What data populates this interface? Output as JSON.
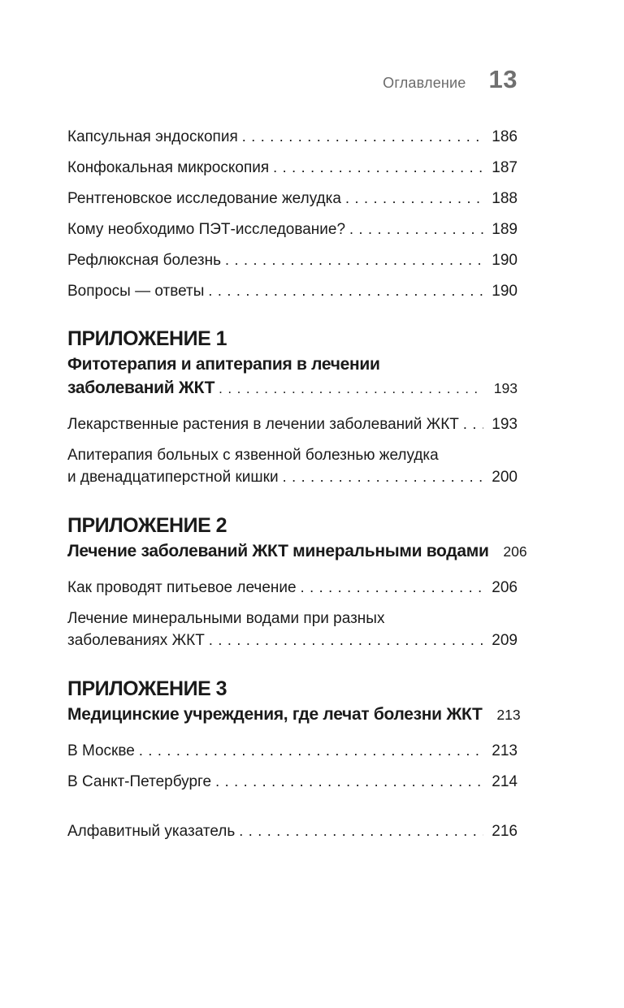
{
  "page": {
    "header": {
      "running_title": "Оглавление",
      "page_number": "13"
    },
    "colors": {
      "text": "#1a1a1a",
      "header_gray": "#6b6b6b",
      "pagenum_gray": "#707070",
      "paper": "#ffffff"
    }
  },
  "toc": {
    "groups": [
      {
        "type": "entries",
        "entries": [
          {
            "label": "Капсульная эндоскопия",
            "page": "186"
          },
          {
            "label": "Конфокальная микроскопия",
            "page": "187"
          },
          {
            "label": "Рентгеновское исследование желудка",
            "page": "188"
          },
          {
            "label": "Кому необходимо ПЭТ-исследование?",
            "page": "189"
          },
          {
            "label": "Рефлюксная болезнь",
            "page": "190"
          },
          {
            "label": "Вопросы — ответы",
            "page": "190"
          }
        ]
      },
      {
        "type": "section",
        "heading": "ПРИЛОЖЕНИЕ 1",
        "title_lines": [
          "Фитотерапия и апитерапия в лечении",
          "заболеваний ЖКТ"
        ],
        "title_page": "193",
        "entries": [
          {
            "label": "Лекарственные растения в лечении заболеваний ЖКТ",
            "page": "193"
          },
          {
            "lines": [
              "Апитерапия больных с язвенной болезнью желудка",
              "и двенадцатиперстной кишки"
            ],
            "page": "200"
          }
        ]
      },
      {
        "type": "section",
        "heading": "ПРИЛОЖЕНИЕ 2",
        "title_lines": [
          "Лечение заболеваний ЖКТ минеральными водами"
        ],
        "title_page": "206",
        "entries": [
          {
            "label": "Как проводят питьевое лечение",
            "page": "206"
          },
          {
            "lines": [
              "Лечение минеральными водами при разных",
              "заболеваниях ЖКТ"
            ],
            "page": "209"
          }
        ]
      },
      {
        "type": "section",
        "heading": "ПРИЛОЖЕНИЕ 3",
        "title_lines": [
          "Медицинские учреждения, где лечат болезни ЖКТ"
        ],
        "title_page": "213",
        "entries": [
          {
            "label": "В Москве",
            "page": "213"
          },
          {
            "label": "В Санкт-Петербурге",
            "page": "214"
          }
        ]
      },
      {
        "type": "entries",
        "extra_space": true,
        "entries": [
          {
            "label": "Алфавитный указатель",
            "page": "216"
          }
        ]
      }
    ]
  }
}
